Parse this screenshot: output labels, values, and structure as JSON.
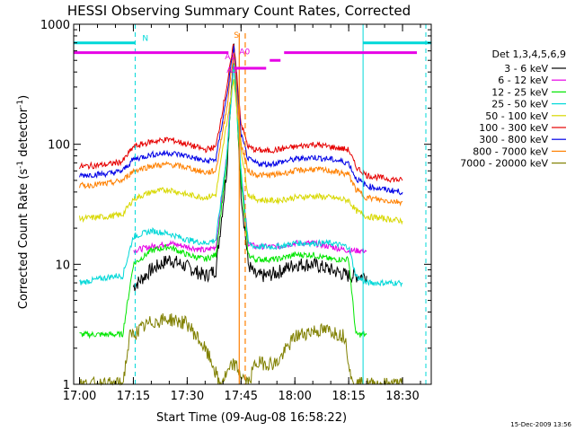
{
  "chart_data": {
    "type": "line",
    "title": "HESSI Observing Summary Count Rates, Corrected",
    "xlabel": "Start Time (09-Aug-08 16:58:22)",
    "ylabel": "Corrected Count Rate (s",
    "ylabel_sup1": "-1",
    "ylabel_mid": " detector",
    "ylabel_sup2": "-1",
    "ylabel_end": ")",
    "x_scale": "time",
    "y_scale": "log",
    "xlim": [
      "16:58:22",
      "18:38:00"
    ],
    "ylim": [
      1,
      1000
    ],
    "x_ticks": [
      "17:00",
      "17:15",
      "17:30",
      "17:45",
      "18:00",
      "18:15",
      "18:30"
    ],
    "y_ticks": [
      "1",
      "10",
      "100",
      "1000"
    ],
    "legend_title": "Det 1,3,4,5,6,9",
    "legend_position": "right",
    "footer": "15-Dec-2009 13:56",
    "series": [
      {
        "name": "3 - 6 keV",
        "color": "#000000",
        "x": [
          "17:15",
          "17:20",
          "17:25",
          "17:30",
          "17:35",
          "17:38",
          "17:41",
          "17:43",
          "17:45",
          "17:47",
          "17:49",
          "17:52",
          "17:55",
          "18:00",
          "18:05",
          "18:10",
          "18:15",
          "18:17",
          "18:20"
        ],
        "y": [
          6.5,
          9,
          11,
          9.5,
          8,
          9,
          60,
          700,
          40,
          10,
          8,
          8,
          8.5,
          10,
          10,
          9,
          8,
          8,
          8
        ]
      },
      {
        "name": "6 - 12 keV",
        "color": "#e600e6",
        "x": [
          "17:15",
          "17:20",
          "17:25",
          "17:30",
          "17:35",
          "17:38",
          "17:41",
          "17:43",
          "17:45",
          "17:47",
          "17:49",
          "17:52",
          "17:55",
          "18:00",
          "18:05",
          "18:10",
          "18:15",
          "18:17",
          "18:20"
        ],
        "y": [
          13,
          14,
          15,
          14,
          13,
          14,
          80,
          600,
          60,
          15,
          14,
          14,
          14,
          15,
          15,
          14,
          13,
          13,
          13
        ]
      },
      {
        "name": "12 - 25 keV",
        "color": "#00e600",
        "x": [
          "17:00",
          "17:12",
          "17:15",
          "17:20",
          "17:25",
          "17:30",
          "17:35",
          "17:38",
          "17:41",
          "17:43",
          "17:45",
          "17:47",
          "17:49",
          "17:52",
          "17:55",
          "18:00",
          "18:05",
          "18:10",
          "18:15",
          "18:17",
          "18:20"
        ],
        "y": [
          2.6,
          2.6,
          10,
          13,
          14,
          12,
          11,
          12,
          70,
          500,
          50,
          12,
          11,
          11,
          11,
          12,
          12,
          11,
          11,
          2.6,
          2.6
        ]
      },
      {
        "name": "25 - 50 keV",
        "color": "#00d8d8",
        "x": [
          "17:00",
          "17:10",
          "17:12",
          "17:15",
          "17:20",
          "17:25",
          "17:30",
          "17:35",
          "17:38",
          "17:41",
          "17:43",
          "17:45",
          "17:47",
          "17:49",
          "17:52",
          "17:55",
          "18:00",
          "18:05",
          "18:10",
          "18:15",
          "18:17",
          "18:20",
          "18:25",
          "18:30"
        ],
        "y": [
          7,
          8,
          8,
          17,
          19,
          18,
          16,
          15,
          16,
          80,
          450,
          60,
          15,
          14,
          14,
          14,
          15,
          15,
          15,
          14,
          8,
          7,
          7,
          7
        ]
      },
      {
        "name": "50 - 100 keV",
        "color": "#d8d800",
        "x": [
          "17:00",
          "17:08",
          "17:12",
          "17:15",
          "17:20",
          "17:25",
          "17:30",
          "17:35",
          "17:38",
          "17:41",
          "17:43",
          "17:45",
          "17:47",
          "17:49",
          "17:52",
          "17:55",
          "18:00",
          "18:05",
          "18:10",
          "18:15",
          "18:17",
          "18:20",
          "18:25",
          "18:30"
        ],
        "y": [
          24,
          25,
          26,
          35,
          40,
          42,
          38,
          36,
          38,
          150,
          350,
          90,
          38,
          35,
          34,
          34,
          36,
          37,
          36,
          34,
          28,
          25,
          24,
          23
        ]
      },
      {
        "name": "100 - 300 keV",
        "color": "#e60000",
        "x": [
          "17:00",
          "17:08",
          "17:12",
          "17:15",
          "17:20",
          "17:25",
          "17:30",
          "17:35",
          "17:38",
          "17:41",
          "17:43",
          "17:45",
          "17:47",
          "17:49",
          "17:52",
          "17:55",
          "18:00",
          "18:05",
          "18:10",
          "18:15",
          "18:17",
          "18:20",
          "18:25",
          "18:30"
        ],
        "y": [
          65,
          68,
          72,
          95,
          105,
          110,
          100,
          90,
          95,
          300,
          700,
          150,
          95,
          90,
          88,
          90,
          95,
          100,
          95,
          90,
          65,
          55,
          52,
          50
        ]
      },
      {
        "name": "300 - 800 keV",
        "color": "#0000e6",
        "x": [
          "17:00",
          "17:08",
          "17:12",
          "17:15",
          "17:20",
          "17:25",
          "17:30",
          "17:35",
          "17:38",
          "17:41",
          "17:43",
          "17:45",
          "17:47",
          "17:49",
          "17:52",
          "17:55",
          "18:00",
          "18:05",
          "18:10",
          "18:15",
          "18:17",
          "18:20",
          "18:25",
          "18:30"
        ],
        "y": [
          55,
          57,
          60,
          75,
          82,
          85,
          80,
          72,
          75,
          250,
          650,
          120,
          75,
          70,
          68,
          70,
          75,
          78,
          75,
          70,
          52,
          45,
          42,
          40
        ]
      },
      {
        "name": "800 - 7000 keV",
        "color": "#ff8000",
        "x": [
          "17:00",
          "17:08",
          "17:12",
          "17:15",
          "17:20",
          "17:25",
          "17:30",
          "17:35",
          "17:38",
          "17:41",
          "17:43",
          "17:45",
          "17:47",
          "17:49",
          "17:52",
          "17:55",
          "18:00",
          "18:05",
          "18:10",
          "18:15",
          "18:17",
          "18:20",
          "18:25",
          "18:30"
        ],
        "y": [
          45,
          47,
          50,
          60,
          66,
          68,
          64,
          58,
          60,
          200,
          600,
          100,
          60,
          56,
          55,
          56,
          60,
          62,
          60,
          56,
          42,
          36,
          34,
          33
        ]
      },
      {
        "name": "7000 - 20000 keV",
        "color": "#808000",
        "x": [
          "17:00",
          "17:12",
          "17:14",
          "17:20",
          "17:25",
          "17:30",
          "17:34",
          "17:37",
          "17:39",
          "17:41",
          "17:43",
          "17:45",
          "17:47",
          "17:49",
          "17:55",
          "18:00",
          "18:05",
          "18:10",
          "18:14",
          "18:16",
          "18:20",
          "18:30"
        ],
        "y": [
          1,
          1,
          2.5,
          3.3,
          3.5,
          3.2,
          2.2,
          1.5,
          1,
          1.2,
          1.5,
          1.2,
          1,
          1.5,
          1.5,
          2.5,
          2.8,
          2.8,
          2.5,
          1,
          1,
          1
        ]
      }
    ],
    "annotations": [
      {
        "label": "N",
        "color": "#00d8d8",
        "x_start": "16:58:22",
        "x_end": "17:15:30",
        "x_end2": "18:38:00",
        "x_start2": "18:19:00",
        "y": 700
      },
      {
        "label": "S",
        "color": "#ff8000",
        "x": [
          "17:44:30",
          "17:46:10"
        ]
      },
      {
        "label": "A0",
        "color": "#e600e6",
        "y": 580
      },
      {
        "label": "A1",
        "color": "#e600e6",
        "y": 500
      },
      {
        "label": "A3",
        "color": "#e600e6",
        "y": 430
      }
    ]
  }
}
